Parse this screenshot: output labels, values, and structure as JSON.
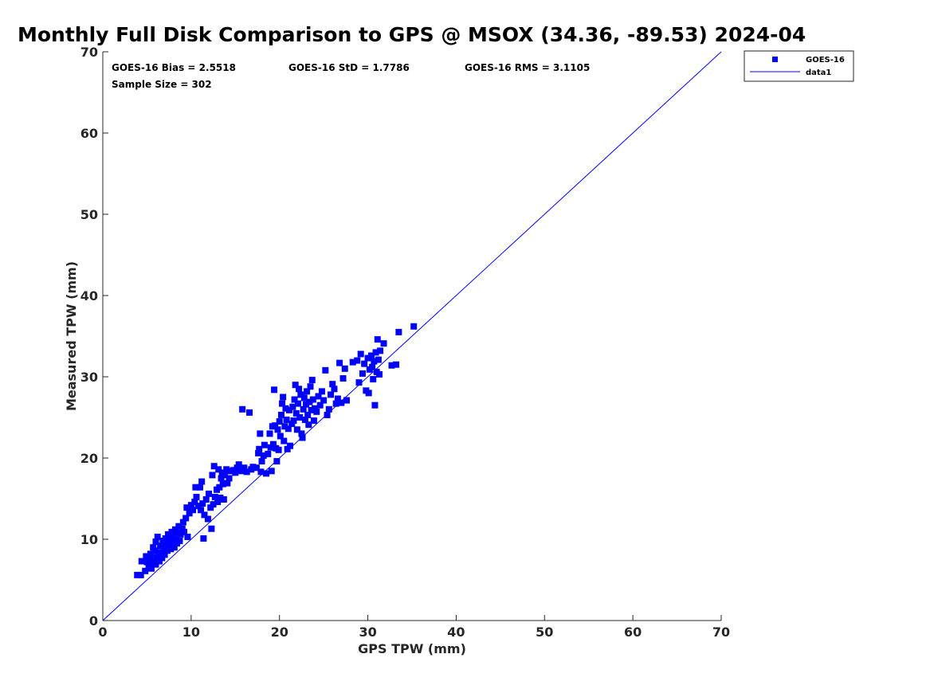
{
  "chart_data": {
    "type": "scatter",
    "title": "Monthly Full Disk Comparison to GPS @ MSOX (34.36, -89.53) 2024-04",
    "xlabel": "GPS TPW (mm)",
    "ylabel": "Measured TPW (mm)",
    "xlim": [
      0,
      70
    ],
    "ylim": [
      0,
      70
    ],
    "xticks": [
      0,
      10,
      20,
      30,
      40,
      50,
      60,
      70
    ],
    "yticks": [
      0,
      10,
      20,
      30,
      40,
      50,
      60,
      70
    ],
    "xtick_labels": [
      "0",
      "10",
      "20",
      "30",
      "40",
      "50",
      "60",
      "70"
    ],
    "ytick_labels": [
      "0",
      "10",
      "20",
      "30",
      "40",
      "50",
      "60",
      "70"
    ],
    "grid": false,
    "legend_position": "top-right",
    "annotations": {
      "bias": "GOES-16 Bias = 2.5518",
      "std": "GOES-16 StD = 1.7786",
      "rms": "GOES-16 RMS = 3.1105",
      "sample_size": "Sample Size = 302"
    },
    "series": [
      {
        "name": "GOES-16",
        "kind": "scatter",
        "marker": "square",
        "color": "#0000ff",
        "points": [
          [
            3.9,
            5.6
          ],
          [
            4.3,
            5.6
          ],
          [
            4.4,
            7.3
          ],
          [
            4.8,
            6.1
          ],
          [
            4.9,
            7.9
          ],
          [
            5.0,
            7.2
          ],
          [
            5.2,
            6.6
          ],
          [
            5.3,
            7.6
          ],
          [
            5.4,
            8.2
          ],
          [
            5.5,
            6.4
          ],
          [
            5.6,
            7.0
          ],
          [
            5.7,
            9.0
          ],
          [
            5.8,
            7.4
          ],
          [
            5.9,
            8.6
          ],
          [
            6.0,
            6.9
          ],
          [
            6.0,
            9.7
          ],
          [
            6.1,
            7.8
          ],
          [
            6.2,
            10.3
          ],
          [
            6.3,
            8.1
          ],
          [
            6.4,
            7.3
          ],
          [
            6.5,
            9.2
          ],
          [
            6.6,
            8.4
          ],
          [
            6.7,
            7.7
          ],
          [
            6.8,
            9.8
          ],
          [
            6.9,
            8.9
          ],
          [
            7.0,
            8.1
          ],
          [
            7.1,
            10.1
          ],
          [
            7.2,
            9.4
          ],
          [
            7.3,
            8.6
          ],
          [
            7.4,
            10.6
          ],
          [
            7.5,
            9.1
          ],
          [
            7.6,
            9.9
          ],
          [
            7.7,
            8.8
          ],
          [
            7.8,
            10.9
          ],
          [
            7.9,
            9.6
          ],
          [
            8.0,
            10.3
          ],
          [
            8.1,
            9.0
          ],
          [
            8.2,
            11.2
          ],
          [
            8.3,
            10.0
          ],
          [
            8.4,
            9.5
          ],
          [
            8.5,
            10.8
          ],
          [
            8.6,
            11.6
          ],
          [
            8.7,
            9.8
          ],
          [
            8.8,
            10.6
          ],
          [
            9.0,
            11.3
          ],
          [
            9.1,
            12.1
          ],
          [
            9.2,
            10.9
          ],
          [
            9.4,
            12.6
          ],
          [
            9.5,
            13.9
          ],
          [
            9.6,
            10.3
          ],
          [
            9.8,
            13.2
          ],
          [
            10.0,
            14.2
          ],
          [
            10.2,
            13.6
          ],
          [
            10.4,
            14.6
          ],
          [
            10.5,
            16.4
          ],
          [
            10.6,
            15.2
          ],
          [
            10.8,
            14.1
          ],
          [
            11.0,
            16.4
          ],
          [
            11.1,
            13.6
          ],
          [
            11.2,
            17.1
          ],
          [
            11.3,
            14.4
          ],
          [
            11.4,
            10.1
          ],
          [
            11.5,
            13.0
          ],
          [
            11.7,
            14.9
          ],
          [
            11.9,
            12.5
          ],
          [
            12.0,
            15.6
          ],
          [
            12.2,
            13.9
          ],
          [
            12.3,
            11.3
          ],
          [
            12.4,
            17.9
          ],
          [
            12.5,
            14.3
          ],
          [
            12.6,
            19.0
          ],
          [
            12.7,
            15.2
          ],
          [
            12.9,
            16.1
          ],
          [
            13.0,
            14.6
          ],
          [
            13.1,
            18.6
          ],
          [
            13.2,
            16.4
          ],
          [
            13.3,
            15.1
          ],
          [
            13.4,
            17.5
          ],
          [
            13.5,
            18.2
          ],
          [
            13.6,
            16.8
          ],
          [
            13.7,
            14.9
          ],
          [
            13.8,
            17.9
          ],
          [
            14.0,
            18.6
          ],
          [
            14.1,
            16.9
          ],
          [
            14.3,
            17.5
          ],
          [
            14.5,
            18.4
          ],
          [
            14.8,
            18.5
          ],
          [
            15.0,
            18.2
          ],
          [
            15.2,
            18.8
          ],
          [
            15.4,
            19.2
          ],
          [
            15.6,
            18.4
          ],
          [
            15.8,
            26.0
          ],
          [
            16.0,
            18.8
          ],
          [
            16.3,
            18.3
          ],
          [
            16.6,
            25.6
          ],
          [
            16.8,
            18.6
          ],
          [
            17.0,
            18.9
          ],
          [
            17.4,
            18.8
          ],
          [
            17.6,
            20.6
          ],
          [
            17.7,
            21.1
          ],
          [
            17.8,
            23.0
          ],
          [
            17.9,
            18.3
          ],
          [
            18.0,
            19.6
          ],
          [
            18.2,
            20.3
          ],
          [
            18.3,
            21.6
          ],
          [
            18.5,
            18.1
          ],
          [
            18.7,
            20.5
          ],
          [
            18.9,
            23.0
          ],
          [
            19.0,
            21.3
          ],
          [
            19.1,
            18.4
          ],
          [
            19.2,
            23.9
          ],
          [
            19.3,
            21.7
          ],
          [
            19.4,
            28.4
          ],
          [
            19.5,
            24.0
          ],
          [
            19.6,
            21.2
          ],
          [
            19.7,
            19.6
          ],
          [
            19.8,
            23.5
          ],
          [
            19.9,
            21.0
          ],
          [
            20.0,
            24.5
          ],
          [
            20.1,
            22.7
          ],
          [
            20.2,
            25.3
          ],
          [
            20.3,
            26.7
          ],
          [
            20.4,
            27.5
          ],
          [
            20.5,
            22.1
          ],
          [
            20.6,
            23.9
          ],
          [
            20.7,
            26.1
          ],
          [
            20.8,
            24.7
          ],
          [
            20.9,
            21.1
          ],
          [
            21.0,
            23.6
          ],
          [
            21.1,
            25.9
          ],
          [
            21.2,
            21.5
          ],
          [
            21.4,
            24.2
          ],
          [
            21.5,
            26.3
          ],
          [
            21.6,
            24.6
          ],
          [
            21.7,
            27.2
          ],
          [
            21.8,
            29.0
          ],
          [
            21.9,
            25.5
          ],
          [
            22.0,
            23.5
          ],
          [
            22.1,
            26.7
          ],
          [
            22.2,
            28.5
          ],
          [
            22.3,
            25.0
          ],
          [
            22.4,
            27.8
          ],
          [
            22.5,
            23.0
          ],
          [
            22.6,
            22.5
          ],
          [
            22.7,
            26.0
          ],
          [
            22.8,
            27.4
          ],
          [
            22.9,
            24.7
          ],
          [
            23.0,
            26.6
          ],
          [
            23.1,
            28.2
          ],
          [
            23.2,
            25.3
          ],
          [
            23.3,
            24.1
          ],
          [
            23.4,
            26.9
          ],
          [
            23.5,
            28.8
          ],
          [
            23.6,
            25.9
          ],
          [
            23.7,
            29.6
          ],
          [
            23.8,
            27.2
          ],
          [
            23.9,
            24.6
          ],
          [
            24.0,
            26.1
          ],
          [
            24.2,
            25.7
          ],
          [
            24.4,
            27.6
          ],
          [
            24.6,
            26.5
          ],
          [
            24.8,
            28.2
          ],
          [
            25.0,
            27.1
          ],
          [
            25.2,
            30.8
          ],
          [
            25.4,
            25.3
          ],
          [
            25.6,
            26.0
          ],
          [
            25.8,
            27.8
          ],
          [
            26.0,
            29.1
          ],
          [
            26.2,
            28.5
          ],
          [
            26.4,
            26.7
          ],
          [
            26.6,
            27.3
          ],
          [
            26.8,
            31.7
          ],
          [
            27.0,
            26.8
          ],
          [
            27.2,
            29.8
          ],
          [
            27.4,
            31.0
          ],
          [
            27.6,
            27.1
          ],
          [
            28.3,
            31.8
          ],
          [
            28.8,
            32.0
          ],
          [
            29.0,
            29.3
          ],
          [
            29.2,
            32.8
          ],
          [
            29.4,
            30.4
          ],
          [
            29.6,
            31.6
          ],
          [
            29.8,
            28.3
          ],
          [
            30.0,
            32.3
          ],
          [
            30.1,
            28.0
          ],
          [
            30.2,
            30.9
          ],
          [
            30.4,
            32.6
          ],
          [
            30.5,
            31.2
          ],
          [
            30.6,
            29.7
          ],
          [
            30.7,
            31.9
          ],
          [
            30.8,
            26.5
          ],
          [
            30.9,
            33.0
          ],
          [
            31.0,
            30.6
          ],
          [
            31.1,
            34.6
          ],
          [
            31.2,
            32.1
          ],
          [
            31.3,
            30.3
          ],
          [
            31.4,
            33.2
          ],
          [
            31.8,
            34.1
          ],
          [
            32.7,
            31.4
          ],
          [
            33.2,
            31.5
          ],
          [
            33.5,
            35.5
          ],
          [
            35.2,
            36.2
          ]
        ]
      },
      {
        "name": "data1",
        "kind": "line",
        "color": "#0000ff",
        "points": [
          [
            0,
            0
          ],
          [
            70,
            70
          ]
        ]
      }
    ]
  }
}
